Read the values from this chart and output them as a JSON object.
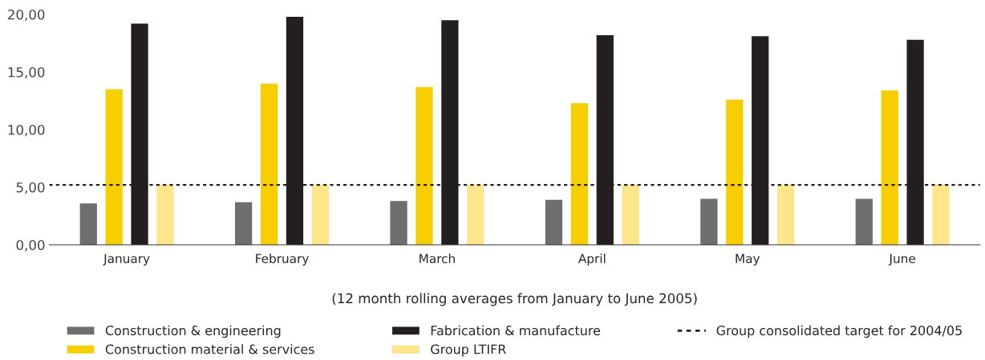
{
  "chart_data": {
    "type": "bar",
    "categories": [
      "January",
      "February",
      "March",
      "April",
      "May",
      "June"
    ],
    "xlabel": "(12 month rolling averages from January to June 2005)",
    "series": [
      {
        "name": "Construction & engineering",
        "color": "#6d6e70",
        "values": [
          3.6,
          3.7,
          3.8,
          3.9,
          4.0,
          4.0
        ]
      },
      {
        "name": "Construction material & services",
        "color": "#f7cf00",
        "values": [
          13.5,
          14.0,
          13.7,
          12.3,
          12.6,
          13.4
        ]
      },
      {
        "name": "Fabrication & manufacture",
        "color": "#231f20",
        "values": [
          19.2,
          19.8,
          19.5,
          18.2,
          18.1,
          17.8
        ]
      },
      {
        "name": "Group LTIFR",
        "color": "#fde58a",
        "values": [
          5.2,
          5.2,
          5.2,
          5.2,
          5.2,
          5.2
        ]
      }
    ],
    "ref_lines": [
      {
        "axis": "y",
        "value": 5.2,
        "label": "Group consolidated target for 2004/05",
        "color": "#231f20",
        "line_style": "dashed"
      }
    ],
    "ylim": [
      0,
      20
    ],
    "yticks": [
      {
        "value": 0,
        "label": "0,00"
      },
      {
        "value": 5,
        "label": "5,00"
      },
      {
        "value": 10,
        "label": "10,00"
      },
      {
        "value": 15,
        "label": "15,00"
      },
      {
        "value": 20,
        "label": "20,00"
      }
    ],
    "legend": "bottom",
    "grid": false
  }
}
